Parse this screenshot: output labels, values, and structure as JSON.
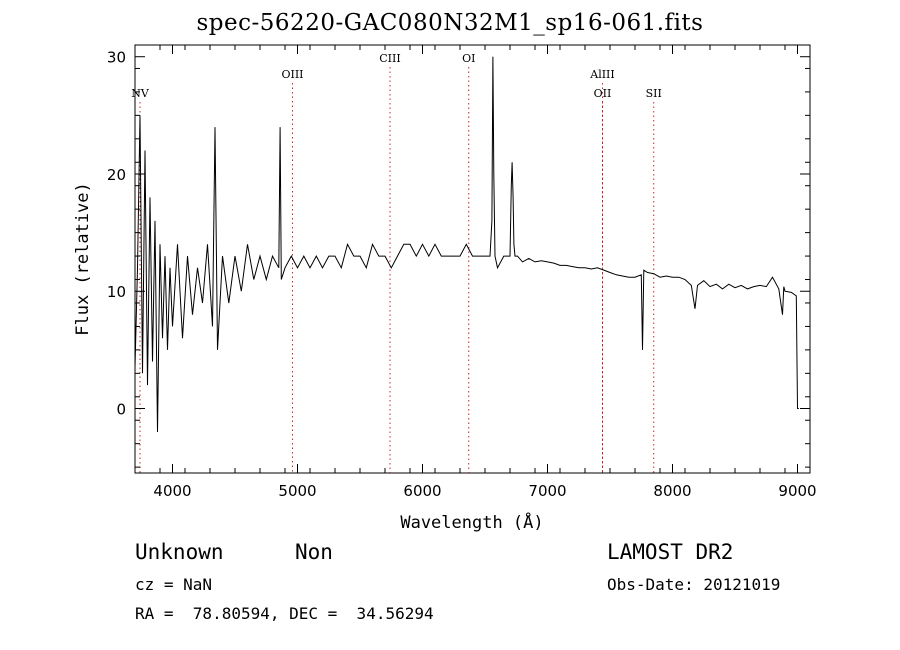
{
  "chart_data": {
    "type": "line",
    "title": "spec-56220-GAC080N32M1_sp16-061.fits",
    "xlabel": "Wavelength (Å)",
    "ylabel": "Flux (relative)",
    "xlim": [
      3700,
      9100
    ],
    "ylim": [
      -5.5,
      31
    ],
    "x_ticks": [
      4000,
      5000,
      6000,
      7000,
      8000,
      9000
    ],
    "y_ticks": [
      0,
      10,
      20,
      30
    ],
    "grid": false,
    "line_color": "#000000",
    "marker_color": "#cc2222",
    "line_markers": [
      {
        "label": "NV",
        "x": 3740,
        "label_row": 2
      },
      {
        "label": "OIII",
        "x": 4960,
        "label_row": 1
      },
      {
        "label": "CIII",
        "x": 5740,
        "label_row": 0
      },
      {
        "label": "OI",
        "x": 6370,
        "label_row": 0
      },
      {
        "label": "AlIII",
        "x": 7440,
        "label_row": 1
      },
      {
        "label": "OII",
        "x": 7440,
        "label_row": 2
      },
      {
        "label": "SII",
        "x": 7850,
        "label_row": 2
      }
    ],
    "series": [
      {
        "x": [
          3700,
          3720,
          3740,
          3760,
          3780,
          3800,
          3820,
          3840,
          3860,
          3880,
          3900,
          3920,
          3940,
          3960,
          3980,
          4000,
          4040,
          4080,
          4120,
          4160,
          4200,
          4240,
          4280,
          4320,
          4340,
          4360,
          4400,
          4450,
          4500,
          4550,
          4600,
          4650,
          4700,
          4750,
          4800,
          4850,
          4861,
          4870,
          4900,
          4950,
          5000,
          5050,
          5100,
          5150,
          5200,
          5250,
          5300,
          5350,
          5400,
          5450,
          5500,
          5550,
          5600,
          5650,
          5700,
          5750,
          5800,
          5850,
          5900,
          5950,
          6000,
          6050,
          6100,
          6150,
          6200,
          6250,
          6300,
          6350,
          6400,
          6450,
          6500,
          6540,
          6555,
          6563,
          6570,
          6580,
          6600,
          6650,
          6700,
          6710,
          6717,
          6725,
          6731,
          6740,
          6760,
          6800,
          6850,
          6900,
          6950,
          7000,
          7050,
          7100,
          7150,
          7200,
          7250,
          7300,
          7350,
          7400,
          7450,
          7500,
          7550,
          7600,
          7650,
          7700,
          7750,
          7760,
          7770,
          7800,
          7850,
          7900,
          7950,
          8000,
          8050,
          8100,
          8150,
          8180,
          8200,
          8250,
          8300,
          8350,
          8400,
          8450,
          8500,
          8550,
          8600,
          8650,
          8700,
          8750,
          8800,
          8850,
          8880,
          8890,
          8900,
          8950,
          8990,
          9000,
          9010
        ],
        "y": [
          3.5,
          12,
          25,
          3,
          22,
          2,
          18,
          4,
          16,
          -2,
          14,
          6,
          13,
          5,
          12,
          7,
          14,
          6,
          13,
          8,
          12,
          9,
          14,
          7,
          24,
          5,
          13,
          9,
          13,
          10,
          14,
          11,
          13,
          11,
          13,
          12,
          24,
          11,
          12,
          13,
          12,
          13,
          12,
          13,
          12,
          13,
          13,
          12,
          14,
          13,
          13,
          12,
          14,
          13,
          13,
          12,
          13,
          14,
          14,
          13,
          14,
          13,
          14,
          13,
          13,
          13,
          13,
          14,
          13,
          13,
          13,
          13,
          16,
          30,
          20,
          13,
          12,
          13,
          13,
          19,
          21,
          18,
          14,
          13,
          13,
          12.5,
          12.8,
          12.5,
          12.6,
          12.5,
          12.4,
          12.2,
          12.2,
          12.1,
          12,
          12,
          11.9,
          12,
          11.8,
          11.6,
          11.4,
          11.3,
          11.2,
          11.2,
          11.4,
          5,
          11.8,
          11.6,
          11.5,
          11.2,
          11.3,
          11.2,
          11.2,
          11,
          10.5,
          8.5,
          10.5,
          10.9,
          10.4,
          10.6,
          10.2,
          10.6,
          10.3,
          10.5,
          10.2,
          10.4,
          10.5,
          10.4,
          11.2,
          10.2,
          8,
          10.4,
          10,
          9.9,
          9.6,
          0,
          0
        ]
      }
    ]
  },
  "footer": {
    "object_class": "Unknown",
    "subclass": "Non",
    "survey": "LAMOST DR2",
    "redshift": "cz = NaN",
    "obs_date": "Obs-Date: 20121019",
    "coords": "RA =  78.80594, DEC =  34.56294"
  }
}
